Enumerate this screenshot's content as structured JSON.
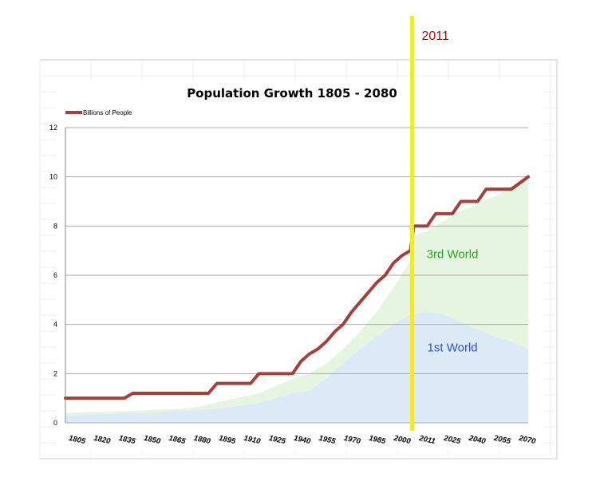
{
  "chart_data": {
    "type": "line",
    "title": "Population Growth  1805 - 2080",
    "legend": {
      "placement": "top-left",
      "entries": [
        "Billions of People"
      ]
    },
    "ylim": [
      0,
      12
    ],
    "yticks": [
      "0",
      "2",
      "4",
      "6",
      "8",
      "10",
      "12"
    ],
    "xlim": [
      1805,
      2080
    ],
    "xtick_labels": [
      "1805",
      "1820",
      "1835",
      "1850",
      "1865",
      "1880",
      "1895",
      "1910",
      "1925",
      "1940",
      "1955",
      "1970",
      "1985",
      "2000",
      "2011",
      "2025",
      "2040",
      "2055",
      "2070"
    ],
    "grid": true,
    "series": [
      {
        "name": "Billions of People",
        "color": "#a3403c",
        "x": [
          1805,
          1840,
          1845,
          1890,
          1895,
          1915,
          1920,
          1940,
          1945,
          1950,
          1955,
          1960,
          1965,
          1970,
          1975,
          1980,
          1985,
          1990,
          1995,
          2000,
          2005,
          2010,
          2011,
          2012,
          2020,
          2025,
          2035,
          2040,
          2050,
          2055,
          2070,
          2080
        ],
        "values": [
          1,
          1,
          1.2,
          1.2,
          1.6,
          1.6,
          2,
          2,
          2.5,
          2.8,
          3,
          3.3,
          3.7,
          4,
          4.5,
          4.9,
          5.3,
          5.7,
          6.0,
          6.5,
          6.8,
          7.0,
          7.5,
          8,
          8,
          8.5,
          8.5,
          9,
          9,
          9.5,
          9.5,
          10
        ]
      }
    ],
    "areas": [
      {
        "label": "1st World",
        "color": "#dceaf7",
        "x": [
          1805,
          1850,
          1880,
          1900,
          1920,
          1940,
          1950,
          1960,
          1970,
          1980,
          1990,
          2000,
          2010,
          2020,
          2030,
          2040,
          2050,
          2060,
          2070,
          2080
        ],
        "values": [
          0.3,
          0.4,
          0.5,
          0.6,
          0.8,
          1.2,
          1.3,
          1.8,
          2.4,
          3.0,
          3.5,
          4.0,
          4.4,
          4.5,
          4.4,
          4.1,
          3.8,
          3.5,
          3.3,
          3.0
        ]
      },
      {
        "label": "3rd World",
        "color": "#e6f5df",
        "x": [
          1805,
          1850,
          1880,
          1900,
          1920,
          1940,
          1950,
          1960,
          1970,
          1980,
          1990,
          2000,
          2010,
          2011,
          2020,
          2030,
          2040,
          2050,
          2060,
          2070,
          2080
        ],
        "values": [
          0.4,
          0.5,
          0.6,
          0.9,
          1.2,
          1.8,
          2.0,
          2.4,
          3.0,
          3.7,
          4.5,
          5.5,
          6.6,
          7.6,
          7.8,
          8.2,
          8.6,
          8.9,
          9.2,
          9.6,
          10
        ]
      }
    ],
    "annotations": [
      {
        "text": "3rd World",
        "x": 2035,
        "y": 6.7,
        "color": "#2e9e2e"
      },
      {
        "text": "1st World",
        "x": 2035,
        "y": 2.9,
        "color": "#2b4fd6"
      }
    ],
    "marker_line": {
      "label": "2011",
      "x": 2011,
      "color": "#f5e63a",
      "label_color": "#a01010"
    }
  }
}
